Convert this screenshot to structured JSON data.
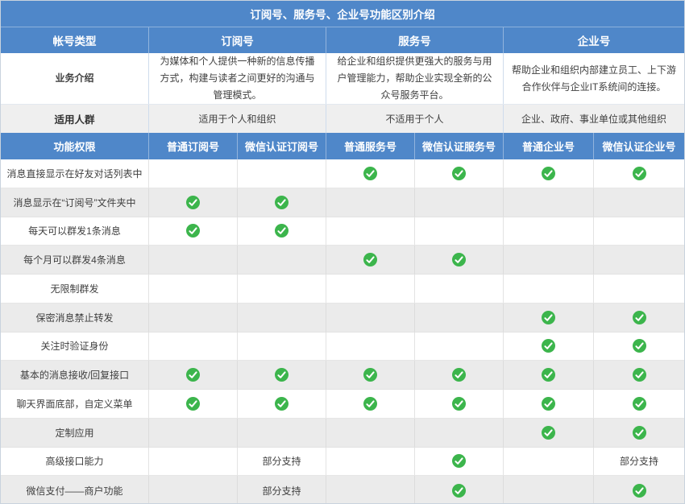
{
  "title": "订阅号、服务号、企业号功能区别介绍",
  "header": {
    "label": "帐号类型",
    "types": [
      "订阅号",
      "服务号",
      "企业号"
    ]
  },
  "intro": {
    "label": "业务介绍",
    "descriptions": [
      "为媒体和个人提供一种新的信息传播方式，构建与读者之间更好的沟通与管理模式。",
      "给企业和组织提供更强大的服务与用户管理能力，帮助企业实现全新的公众号服务平台。",
      "帮助企业和组织内部建立员工、上下游合作伙伴与企业IT系统间的连接。"
    ]
  },
  "audience": {
    "label": "适用人群",
    "values": [
      "适用于个人和组织",
      "不适用于个人",
      "企业、政府、事业单位或其他组织"
    ]
  },
  "permissions": {
    "label": "功能权限",
    "columns": [
      "普通订阅号",
      "微信认证订阅号",
      "普通服务号",
      "微信认证服务号",
      "普通企业号",
      "微信认证企业号"
    ]
  },
  "partial_text": "部分支持",
  "features": [
    {
      "label": "消息直接显示在好友对话列表中",
      "cells": [
        "",
        "",
        "check",
        "check",
        "check",
        "check"
      ]
    },
    {
      "label": "消息显示在“订阅号”文件夹中",
      "cells": [
        "check",
        "check",
        "",
        "",
        "",
        ""
      ]
    },
    {
      "label": "每天可以群发1条消息",
      "cells": [
        "check",
        "check",
        "",
        "",
        "",
        ""
      ]
    },
    {
      "label": "每个月可以群发4条消息",
      "cells": [
        "",
        "",
        "check",
        "check",
        "",
        ""
      ]
    },
    {
      "label": "无限制群发",
      "cells": [
        "",
        "",
        "",
        "",
        "",
        ""
      ]
    },
    {
      "label": "保密消息禁止转发",
      "cells": [
        "",
        "",
        "",
        "",
        "check",
        "check"
      ]
    },
    {
      "label": "关注时验证身份",
      "cells": [
        "",
        "",
        "",
        "",
        "check",
        "check"
      ]
    },
    {
      "label": "基本的消息接收/回复接口",
      "cells": [
        "check",
        "check",
        "check",
        "check",
        "check",
        "check"
      ]
    },
    {
      "label": "聊天界面底部，自定义菜单",
      "cells": [
        "check",
        "check",
        "check",
        "check",
        "check",
        "check"
      ]
    },
    {
      "label": "定制应用",
      "cells": [
        "",
        "",
        "",
        "",
        "check",
        "check"
      ]
    },
    {
      "label": "高级接口能力",
      "cells": [
        "",
        "partial",
        "",
        "check",
        "",
        "partial"
      ]
    },
    {
      "label": "微信支付——商户功能",
      "cells": [
        "",
        "partial",
        "",
        "check",
        "",
        "check"
      ]
    }
  ],
  "colors": {
    "header_blue": "#4f87c9",
    "check_green": "#3cb54c",
    "alt_row_gray": "#ebebeb"
  }
}
